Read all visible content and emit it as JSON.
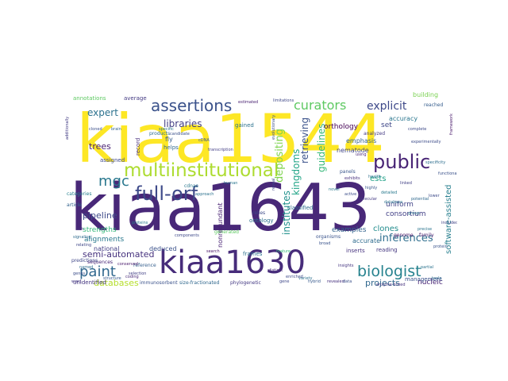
{
  "title": "",
  "words": [
    {
      "text": "kiaa1544",
      "color": "#fde725"
    },
    {
      "text": "kiaa1643",
      "color": "#482878"
    },
    {
      "text": "kiaa1630",
      "color": "#472c7a"
    },
    {
      "text": "multiinstitutional",
      "color": "#addc30"
    },
    {
      "text": "assertions",
      "color": "#3b528b"
    },
    {
      "text": "full-orf",
      "color": "#3e4a89"
    },
    {
      "text": "paint",
      "color": "#31688e"
    },
    {
      "text": "biologist",
      "color": "#26828e"
    },
    {
      "text": "curators",
      "color": "#5ec962"
    },
    {
      "text": "public",
      "color": "#482475"
    },
    {
      "text": "mgc",
      "color": "#2a788e"
    },
    {
      "text": "explicit",
      "color": "#3e4989"
    },
    {
      "text": "expert",
      "color": "#2c728e"
    },
    {
      "text": "libraries",
      "color": "#433e85"
    },
    {
      "text": "trees",
      "color": "#481f70"
    },
    {
      "text": "depositing",
      "color": "#7fd34e"
    },
    {
      "text": "retrieving",
      "color": "#3b528b"
    },
    {
      "text": "kingdoms",
      "color": "#20a486"
    },
    {
      "text": "guidelines",
      "color": "#35b779"
    },
    {
      "text": "institutes",
      "color": "#21918c"
    },
    {
      "text": "inferences",
      "color": "#2e6e8e"
    },
    {
      "text": "pipeline",
      "color": "#3e4a89"
    },
    {
      "text": "semi-automated",
      "color": "#46327e"
    },
    {
      "text": "databases",
      "color": "#b5de2b"
    },
    {
      "text": "projects",
      "color": "#31688e"
    },
    {
      "text": "ests",
      "color": "#1fa187"
    },
    {
      "text": "software-assisted",
      "color": "#277f8e"
    },
    {
      "text": "orthology",
      "color": "#440154"
    },
    {
      "text": "set",
      "color": "#3f4788"
    },
    {
      "text": "uniform",
      "color": "#414487"
    },
    {
      "text": "consortium",
      "color": "#424086"
    },
    {
      "text": "examples",
      "color": "#33638d"
    },
    {
      "text": "clones",
      "color": "#228c8d"
    },
    {
      "text": "strengths",
      "color": "#35b779"
    },
    {
      "text": "alignments",
      "color": "#2a788e"
    },
    {
      "text": "national",
      "color": "#433e85"
    },
    {
      "text": "deduced",
      "color": "#3b528b"
    },
    {
      "text": "nonredundant",
      "color": "#482173"
    },
    {
      "text": "nucleic",
      "color": "#482475"
    },
    {
      "text": "accurate",
      "color": "#2f6c8e"
    },
    {
      "text": "emphasis",
      "color": "#33638d"
    },
    {
      "text": "nematode",
      "color": "#404688"
    },
    {
      "text": "accuracy",
      "color": "#2a768e"
    },
    {
      "text": "building",
      "color": "#7ad151"
    },
    {
      "text": "management",
      "color": "#3b528b"
    },
    {
      "text": "annotations",
      "color": "#5ec962"
    },
    {
      "text": "average",
      "color": "#443a83"
    },
    {
      "text": "assigned",
      "color": "#3e4989"
    },
    {
      "text": "record",
      "color": "#472d7b"
    },
    {
      "text": "fly",
      "color": "#365c8d"
    },
    {
      "text": "helps",
      "color": "#31688e"
    },
    {
      "text": "gained",
      "color": "#2c728e"
    },
    {
      "text": "ontology",
      "color": "#2d708e"
    },
    {
      "text": "classified",
      "color": "#2f6c8e"
    },
    {
      "text": "relies",
      "color": "#3e4a89"
    },
    {
      "text": "frames",
      "color": "#2d708e"
    },
    {
      "text": "reading",
      "color": "#453781"
    },
    {
      "text": "inserts",
      "color": "#46327e"
    },
    {
      "text": "unidentified",
      "color": "#453781"
    },
    {
      "text": "immunosorbent",
      "color": "#3b528b"
    },
    {
      "text": "phylogenetic",
      "color": "#443983"
    },
    {
      "text": "size-fractionated",
      "color": "#31688e"
    },
    {
      "text": "categories",
      "color": "#27808e"
    },
    {
      "text": "sequences",
      "color": "#482576"
    },
    {
      "text": "article",
      "color": "#33638d"
    },
    {
      "text": "predictions",
      "color": "#3f4788"
    },
    {
      "text": "cdnas",
      "color": "#2a788e"
    },
    {
      "text": "reference",
      "color": "#355f8d"
    },
    {
      "text": "panels",
      "color": "#39558c"
    },
    {
      "text": "organisms",
      "color": "#3a538b"
    },
    {
      "text": "reached",
      "color": "#365d8d"
    },
    {
      "text": "products",
      "color": "#2e6d8e"
    },
    {
      "text": "genome",
      "color": "#471063"
    },
    {
      "text": "family",
      "color": "#481a6c"
    },
    {
      "text": "analyzed",
      "color": "#443a83"
    },
    {
      "text": "health",
      "color": "#2d708e"
    },
    {
      "text": "highly",
      "color": "#38588c"
    },
    {
      "text": "complete",
      "color": "#3e4a89"
    },
    {
      "text": "framework",
      "color": "#48186a"
    },
    {
      "text": "brain",
      "color": "#33638d"
    },
    {
      "text": "specific",
      "color": "#2b748e"
    },
    {
      "text": "candidate",
      "color": "#3b518b"
    },
    {
      "text": "conserved",
      "color": "#48196b"
    },
    {
      "text": "generated",
      "color": "#5ec962"
    },
    {
      "text": "components",
      "color": "#3e4989"
    },
    {
      "text": "search",
      "color": "#481467"
    },
    {
      "text": "coding",
      "color": "#482878"
    },
    {
      "text": "human",
      "color": "#2a768e"
    },
    {
      "text": "structure",
      "color": "#38598c"
    },
    {
      "text": "evolutionary",
      "color": "#3c508b"
    },
    {
      "text": "limitations",
      "color": "#3f4788"
    },
    {
      "text": "detailed",
      "color": "#29798e"
    },
    {
      "text": "molecular",
      "color": "#443a83"
    },
    {
      "text": "distinct",
      "color": "#472c7a"
    },
    {
      "text": "insights",
      "color": "#453581"
    },
    {
      "text": "variety",
      "color": "#2c718e"
    },
    {
      "text": "experimentally",
      "color": "#3d4d8a"
    },
    {
      "text": "additionally",
      "color": "#433d84"
    },
    {
      "text": "enzyme-linked",
      "color": "#46327e"
    },
    {
      "text": "revealed",
      "color": "#46307e"
    },
    {
      "text": "hybrid",
      "color": "#38598c"
    },
    {
      "text": "data",
      "color": "#3b518b"
    },
    {
      "text": "selection",
      "color": "#424086"
    },
    {
      "text": "relating",
      "color": "#3f4788"
    },
    {
      "text": "named",
      "color": "#2e6e8e"
    },
    {
      "text": "genes",
      "color": "#3d4e8a"
    },
    {
      "text": "word",
      "color": "#453882"
    },
    {
      "text": "approach",
      "color": "#2c728e"
    },
    {
      "text": "estimated",
      "color": "#482071"
    },
    {
      "text": "proteins",
      "color": "#2a778e"
    },
    {
      "text": "enriched",
      "color": "#3e4a89"
    },
    {
      "text": "mature",
      "color": "#36b77b"
    },
    {
      "text": "broad",
      "color": "#3a548c"
    },
    {
      "text": "gene",
      "color": "#3f4889"
    },
    {
      "text": "tools",
      "color": "#2e6d8e"
    },
    {
      "text": "partial",
      "color": "#2c738e"
    },
    {
      "text": "protein",
      "color": "#3a538b"
    },
    {
      "text": "precise",
      "color": "#2b758e"
    },
    {
      "text": "included",
      "color": "#414387"
    },
    {
      "text": "lower",
      "color": "#3e4c8a"
    },
    {
      "text": "cloned",
      "color": "#3c4f8a"
    },
    {
      "text": "signaling",
      "color": "#2f6b8e"
    },
    {
      "text": "rich",
      "color": "#46337f"
    },
    {
      "text": "cDNA",
      "color": "#3a548c"
    },
    {
      "text": "transcription",
      "color": "#433e85"
    },
    {
      "text": "reveal",
      "color": "#3f4788"
    },
    {
      "text": "novel",
      "color": "#2a788e"
    },
    {
      "text": "active",
      "color": "#3d4e8a"
    },
    {
      "text": "using",
      "color": "#482677"
    },
    {
      "text": "specificity",
      "color": "#2e6e8e"
    },
    {
      "text": "functional",
      "color": "#3b528b"
    },
    {
      "text": "exhibits",
      "color": "#472f7d"
    },
    {
      "text": "database",
      "color": "#2d718e"
    },
    {
      "text": "linked",
      "color": "#424186"
    },
    {
      "text": "potential",
      "color": "#30698e"
    },
    {
      "text": "group",
      "color": "#2a768e"
    }
  ]
}
